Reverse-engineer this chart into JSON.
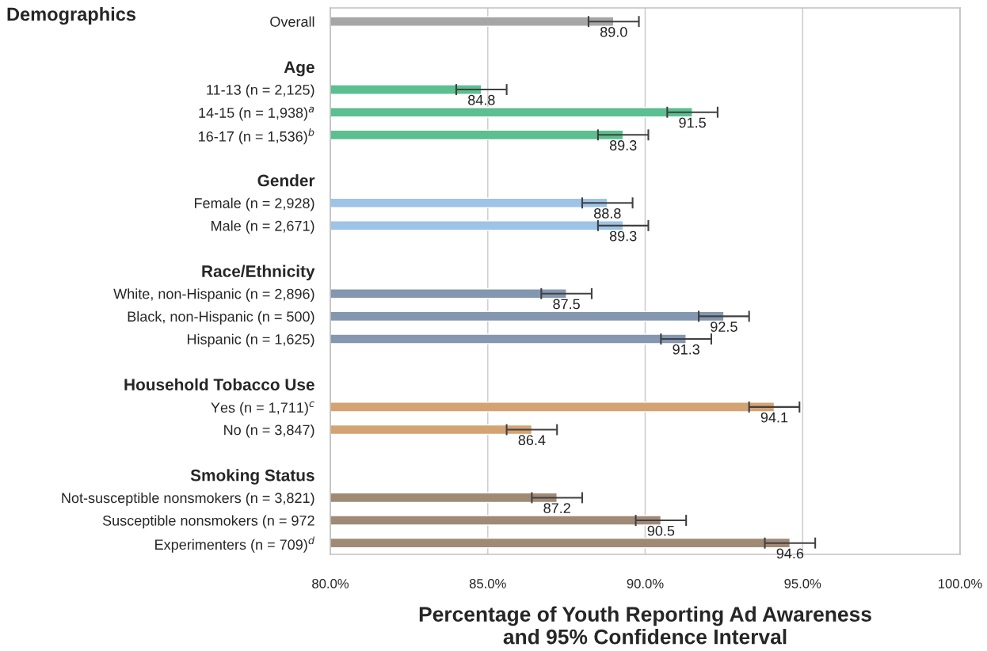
{
  "chart_data": {
    "type": "bar",
    "orientation": "horizontal",
    "title": "Demographics",
    "xlabel": "Percentage of Youth Reporting Ad Awareness\nand 95% Confidence Interval",
    "categories": [
      "Overall",
      null,
      "Age",
      "11-13 (n = 2,125)",
      "14-15 (n = 1,938)$^{a}$",
      "16-17 (n = 1,536)$^{b}$",
      null,
      "Gender",
      "Female (n = 2,928)",
      "Male (n = 2,671)",
      null,
      "Race/Ethnicity",
      "White, non-Hispanic (n = 2,896)",
      "Black, non-Hispanic (n = 500)",
      "Hispanic (n = 1,625)",
      null,
      "Household Tobacco Use",
      "Yes (n = 1,711)$^{c}$",
      "No (n = 3,847)",
      null,
      "Smoking Status",
      "Not-susceptible nonsmokers (n = 3,821)",
      "Susceptible nonsmokers (n = 972",
      "Experimenters (n = 709)$^{d}$"
    ],
    "values": [
      89.0,
      null,
      null,
      84.8,
      91.5,
      89.3,
      null,
      null,
      88.8,
      89.3,
      null,
      null,
      87.5,
      92.5,
      91.3,
      null,
      null,
      94.1,
      86.4,
      null,
      null,
      87.2,
      90.5,
      94.6
    ],
    "value_labels": [
      "89.0",
      null,
      null,
      "84.8",
      "91.5",
      "89.3",
      null,
      null,
      "88.8",
      "89.3",
      null,
      null,
      "87.5",
      "92.5",
      "91.3",
      null,
      null,
      "94.1",
      "86.4",
      null,
      null,
      "87.2",
      "90.5",
      "94.6"
    ],
    "errors": [
      0.8,
      null,
      null,
      0.8,
      0.8,
      0.8,
      null,
      null,
      0.8,
      0.8,
      null,
      null,
      0.8,
      0.8,
      0.8,
      null,
      null,
      0.8,
      0.8,
      null,
      null,
      0.8,
      0.8,
      0.8
    ],
    "colors": [
      "#a6a6a6",
      null,
      null,
      "#5bbf8f",
      "#5bbf8f",
      "#5bbf8f",
      null,
      null,
      "#9dc3e6",
      "#9dc3e6",
      null,
      null,
      "#8497b0",
      "#8497b0",
      "#8497b0",
      null,
      null,
      "#d4a373",
      "#d4a373",
      null,
      null,
      "#a08a76",
      "#a08a76",
      "#a08a76"
    ],
    "xlim": [
      80,
      100
    ],
    "xticks": [
      {
        "value": 80,
        "label": "80.0%"
      },
      {
        "value": 85,
        "label": "85.0%"
      },
      {
        "value": 90,
        "label": "90.0%"
      },
      {
        "value": 95,
        "label": "95.0%"
      },
      {
        "value": 100,
        "label": "100.0%"
      }
    ],
    "grid": "x"
  }
}
